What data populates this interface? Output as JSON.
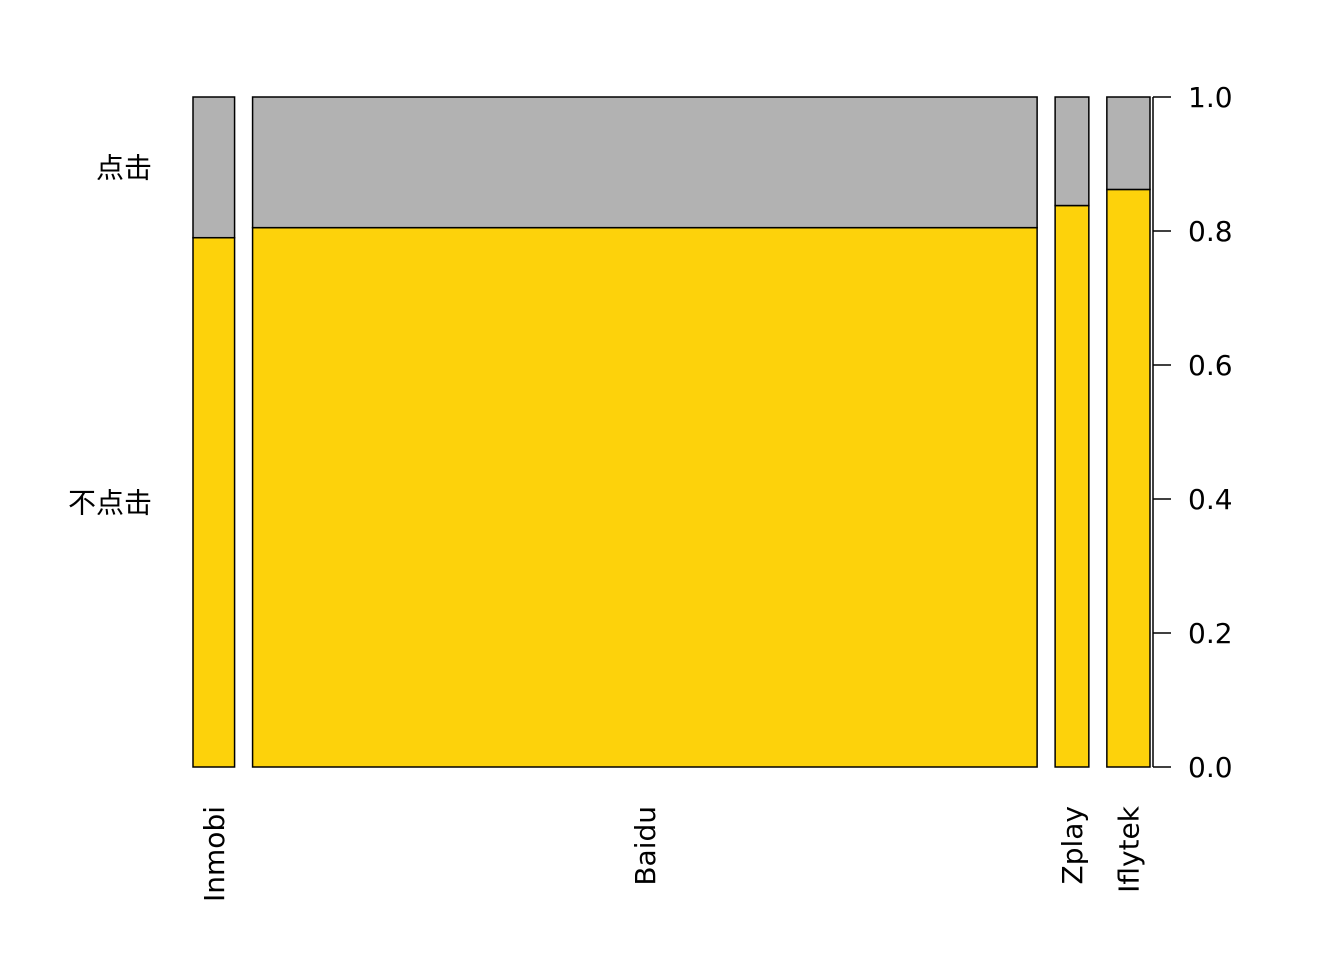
{
  "chart_data": {
    "type": "bar",
    "variant": "spineplot",
    "title": "",
    "xlabel": "",
    "ylabel": "",
    "ylim": [
      0,
      1
    ],
    "y_ticks": [
      "0.0",
      "0.2",
      "0.4",
      "0.6",
      "0.8",
      "1.0"
    ],
    "y_axis_side": "right",
    "grid": false,
    "categories": [
      "Inmobi",
      "Baidu",
      "Zplay",
      "Iflytek"
    ],
    "category_widths": [
      0.053,
      1.0,
      0.043,
      0.055
    ],
    "series": [
      {
        "name": "不点击",
        "values": [
          0.79,
          0.805,
          0.838,
          0.862
        ]
      },
      {
        "name": "点击",
        "values": [
          0.21,
          0.195,
          0.162,
          0.138
        ]
      }
    ],
    "colors": {
      "不点击": "#FDD20B",
      "点击": "#B2B2B2",
      "outline": "#000000"
    }
  }
}
